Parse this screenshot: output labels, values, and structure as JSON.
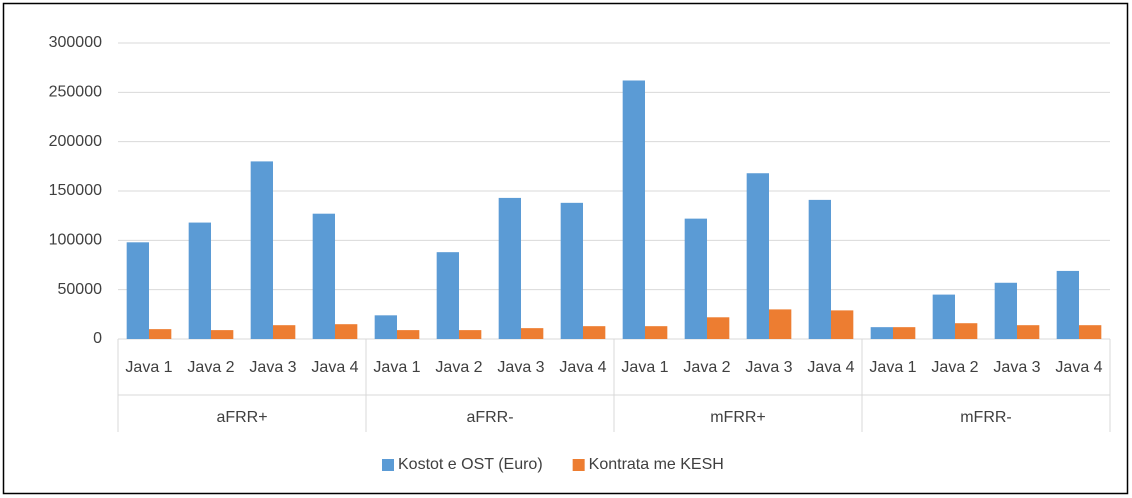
{
  "chart_data": {
    "type": "bar",
    "categories": [
      "Java 1",
      "Java 2",
      "Java 3",
      "Java 4",
      "Java 1",
      "Java 2",
      "Java 3",
      "Java 4",
      "Java 1",
      "Java 2",
      "Java 3",
      "Java 4",
      "Java 1",
      "Java 2",
      "Java 3",
      "Java 4"
    ],
    "groups": [
      "aFRR+",
      "aFRR-",
      "mFRR+",
      "mFRR-"
    ],
    "series": [
      {
        "name": "Kostot e OST (Euro)",
        "color": "#5b9bd5",
        "values": [
          98000,
          118000,
          180000,
          127000,
          24000,
          88000,
          143000,
          138000,
          262000,
          122000,
          168000,
          141000,
          12000,
          45000,
          57000,
          69000
        ]
      },
      {
        "name": "Kontrata me KESH",
        "color": "#ed7d31",
        "values": [
          10000,
          9000,
          14000,
          15000,
          9000,
          9000,
          11000,
          13000,
          13000,
          22000,
          30000,
          29000,
          12000,
          16000,
          14000,
          14000
        ]
      }
    ],
    "ylim": [
      0,
      300000
    ],
    "yticks": [
      0,
      50000,
      100000,
      150000,
      200000,
      250000,
      300000
    ],
    "grid": true,
    "legend": "bottom"
  }
}
